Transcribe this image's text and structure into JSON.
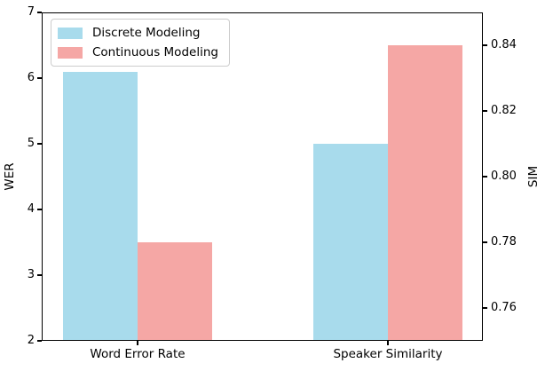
{
  "figure": {
    "background": "#ffffff",
    "axis_color": "#000000"
  },
  "chart_data": {
    "type": "bar",
    "title": "",
    "categories": [
      "Word Error Rate",
      "Speaker Similarity"
    ],
    "category_axis": [
      "left",
      "right"
    ],
    "series": [
      {
        "name": "Discrete Modeling",
        "color": "#a8dbec",
        "values": [
          6.1,
          0.81
        ]
      },
      {
        "name": "Continuous Modeling",
        "color": "#f5a7a5",
        "values": [
          3.5,
          0.84
        ]
      }
    ],
    "left_axis": {
      "label": "WER",
      "min": 2,
      "max": 7,
      "ticks": [
        2,
        3,
        4,
        5,
        6,
        7
      ],
      "tick_format": "int"
    },
    "right_axis": {
      "label": "SIM",
      "min": 0.75,
      "max": 0.85,
      "ticks": [
        0.76,
        0.78,
        0.8,
        0.82,
        0.84
      ],
      "tick_format": "2dp"
    },
    "legend": {
      "position": "upper left",
      "items": [
        "Discrete Modeling",
        "Continuous Modeling"
      ]
    },
    "grid": false
  }
}
